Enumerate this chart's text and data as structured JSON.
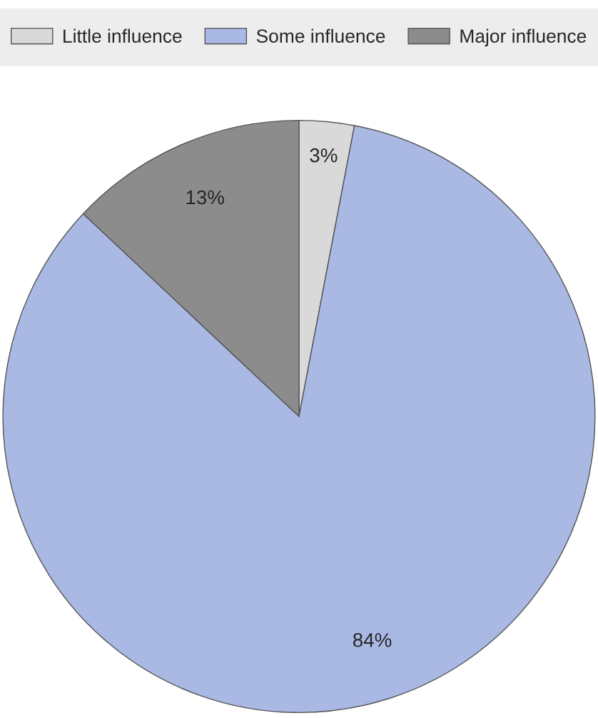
{
  "chart_data": {
    "type": "pie",
    "categories": [
      "Little influence",
      "Some influence",
      "Major influence"
    ],
    "values": [
      3,
      84,
      13
    ],
    "colors": [
      "#d9d9d9",
      "#a9b9e4",
      "#8c8c8c"
    ],
    "value_labels": [
      "3%",
      "84%",
      "13%"
    ],
    "legend": "top"
  }
}
